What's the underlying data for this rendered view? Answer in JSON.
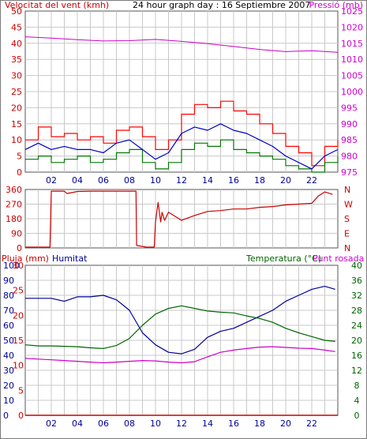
{
  "colors": {
    "wind": "#cc0000",
    "gust": "#ff0000",
    "avg_wind": "#0000cc",
    "green": "#007700",
    "pressure": "#cc00cc",
    "humidity": "#000099",
    "temperature": "#006600",
    "dewpoint": "#cc00cc",
    "rain": "#cc0000",
    "grid": "#c8c8c8",
    "border": "#7a7a7a",
    "title": "#000000"
  },
  "chart_data": [
    {
      "type": "line",
      "title": "24 hour graph day : 16 Septiembre 2007",
      "left_label": "Velocitat del vent (kmh)",
      "right_label": "Pressió (mb)",
      "x_ticks": [
        "02",
        "04",
        "06",
        "08",
        "10",
        "12",
        "14",
        "16",
        "18",
        "20",
        "22"
      ],
      "left_ylim": [
        0,
        50
      ],
      "left_ticks": [
        "0",
        "5",
        "10",
        "15",
        "20",
        "25",
        "30",
        "35",
        "40",
        "45",
        "50"
      ],
      "right_ylim": [
        975,
        1025
      ],
      "right_ticks": [
        "975",
        "980",
        "985",
        "990",
        "995",
        "1000",
        "1005",
        "1010",
        "1015",
        "1020",
        "1025"
      ],
      "grid": true,
      "series": [
        {
          "key": "pressure",
          "x": [
            0,
            2,
            4,
            6,
            8,
            10,
            12,
            14,
            16,
            18,
            20,
            22,
            24
          ],
          "y": [
            1017.0,
            1016.6,
            1016.1,
            1015.7,
            1015.8,
            1016.2,
            1015.6,
            1014.9,
            1014.0,
            1013.1,
            1012.4,
            1012.7,
            1012.2
          ]
        },
        {
          "key": "gust",
          "x": [
            0,
            1,
            2,
            3,
            4,
            5,
            6,
            7,
            8,
            9,
            10,
            11,
            12,
            13,
            14,
            15,
            16,
            17,
            18,
            19,
            20,
            21,
            22,
            23,
            24
          ],
          "y": [
            10,
            14,
            11,
            12,
            10,
            11,
            9,
            13,
            14,
            11,
            7,
            10,
            18,
            21,
            20,
            22,
            19,
            18,
            15,
            12,
            8,
            6,
            2,
            8,
            10
          ]
        },
        {
          "key": "green",
          "x": [
            0,
            1,
            2,
            3,
            4,
            5,
            6,
            7,
            8,
            9,
            10,
            11,
            12,
            13,
            14,
            15,
            16,
            17,
            18,
            19,
            20,
            21,
            22,
            23,
            24
          ],
          "y": [
            4,
            5,
            3,
            4,
            5,
            3,
            4,
            6,
            7,
            3,
            1,
            3,
            7,
            9,
            8,
            10,
            7,
            6,
            5,
            4,
            2,
            1,
            0,
            3,
            5
          ]
        },
        {
          "key": "avg_wind",
          "x": [
            0,
            1,
            2,
            3,
            4,
            5,
            6,
            7,
            8,
            9,
            10,
            11,
            12,
            13,
            14,
            15,
            16,
            17,
            18,
            19,
            20,
            21,
            22,
            23,
            24
          ],
          "y": [
            7,
            9,
            7,
            8,
            7,
            7,
            6,
            9,
            10,
            7,
            4,
            6,
            12,
            14,
            13,
            15,
            13,
            12,
            10,
            8,
            5,
            3,
            1,
            5,
            7
          ]
        }
      ]
    },
    {
      "type": "line",
      "ylim": [
        0,
        360
      ],
      "left_ticks": [
        "0",
        "90",
        "180",
        "270",
        "360"
      ],
      "right_ticks": [
        "N",
        "E",
        "S",
        "W",
        "N"
      ],
      "grid": true,
      "series": [
        {
          "key": "direction",
          "x": [
            0,
            1.9,
            2.0,
            3.0,
            3.2,
            4,
            5,
            6,
            7,
            8,
            8.5,
            8.55,
            9.3,
            9.9,
            10.0,
            10.2,
            10.4,
            10.5,
            10.7,
            11,
            12,
            13,
            14,
            15,
            16,
            17,
            18,
            19,
            20,
            21,
            22,
            22.5,
            23,
            23.6
          ],
          "y": [
            5,
            5,
            350,
            350,
            335,
            348,
            350,
            350,
            350,
            350,
            350,
            15,
            5,
            5,
            160,
            280,
            160,
            220,
            170,
            220,
            170,
            200,
            225,
            230,
            240,
            240,
            250,
            255,
            265,
            270,
            275,
            320,
            345,
            330
          ]
        }
      ]
    },
    {
      "type": "line",
      "labels": [
        "Pluja (mm)",
        "Humitat",
        "Temperatura (°C)",
        "Punt rosada"
      ],
      "rain_ticks": [
        "0",
        "5",
        "10",
        "15",
        "20",
        "25",
        "30"
      ],
      "rain_ylim": [
        0,
        30
      ],
      "hum_ticks": [
        "0",
        "10",
        "20",
        "30",
        "40",
        "50",
        "60",
        "70",
        "80",
        "90",
        "100"
      ],
      "hum_ylim": [
        0,
        100
      ],
      "right_ticks": [
        "0",
        "4",
        "8",
        "12",
        "16",
        "20",
        "24",
        "28",
        "32",
        "36",
        "40"
      ],
      "right_ylim": [
        0,
        40
      ],
      "grid": true,
      "series": [
        {
          "key": "rain",
          "x": [
            0,
            24
          ],
          "y": [
            0,
            0
          ]
        },
        {
          "key": "humidity",
          "x": [
            0,
            1,
            2,
            3,
            4,
            5,
            6,
            7,
            8,
            9,
            10,
            11,
            12,
            13,
            14,
            15,
            16,
            17,
            18,
            19,
            20,
            21,
            22,
            23,
            23.8
          ],
          "y": [
            78,
            78,
            78,
            76,
            79,
            79,
            80,
            77,
            70,
            55,
            47,
            42,
            41,
            44,
            52,
            56,
            58,
            62,
            66,
            70,
            76,
            80,
            84,
            86,
            84
          ]
        },
        {
          "key": "temperature",
          "x": [
            0,
            1,
            2,
            3,
            4,
            5,
            6,
            7,
            8,
            9,
            10,
            11,
            12,
            13,
            14,
            15,
            16,
            17,
            18,
            19,
            20,
            21,
            22,
            23,
            23.8
          ],
          "y": [
            18.8,
            18.5,
            18.5,
            18.4,
            18.3,
            18.0,
            17.8,
            18.6,
            20.5,
            24.0,
            27.0,
            28.5,
            29.2,
            28.5,
            27.8,
            27.5,
            27.3,
            26.5,
            25.8,
            24.8,
            23.2,
            22.0,
            21.0,
            20.0,
            19.7
          ]
        },
        {
          "key": "dewpoint",
          "x": [
            0,
            1,
            2,
            3,
            4,
            5,
            6,
            7,
            8,
            9,
            10,
            11,
            12,
            13,
            14,
            15,
            16,
            17,
            18,
            19,
            20,
            21,
            22,
            23,
            23.8
          ],
          "y": [
            15.2,
            15.0,
            14.8,
            14.6,
            14.4,
            14.2,
            14.0,
            14.2,
            14.4,
            14.6,
            14.5,
            14.2,
            14.0,
            14.3,
            15.6,
            16.8,
            17.4,
            17.8,
            18.2,
            18.3,
            18.1,
            17.9,
            17.8,
            17.4,
            17.0
          ]
        }
      ]
    }
  ]
}
